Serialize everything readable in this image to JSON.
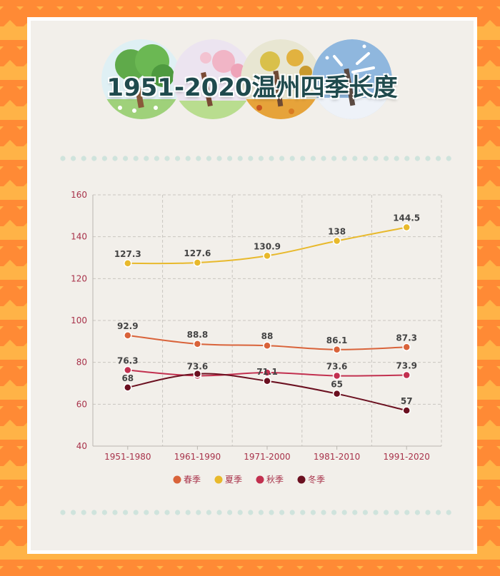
{
  "page": {
    "title": "1951-2020温州四季长度"
  },
  "colors": {
    "spring": "#d9633a",
    "summer": "#e8b92c",
    "autumn": "#c2304f",
    "winter": "#6b1020",
    "axis_text": "#a8324a",
    "grid": "#c9c6c0",
    "title": "#1f4a4d",
    "dots": "#cfe3dc"
  },
  "chart_data": {
    "type": "line",
    "categories": [
      "1951-1980",
      "1961-1990",
      "1971-2000",
      "1981-2010",
      "1991-2020"
    ],
    "title": "1951-2020温州四季长度",
    "xlabel": "",
    "ylabel": "",
    "ylim": [
      40,
      160
    ],
    "yticks": [
      40,
      60,
      80,
      100,
      120,
      140,
      160
    ],
    "grid": true,
    "legend_position": "bottom",
    "series": [
      {
        "name": "春季",
        "color": "#d9633a",
        "values": [
          92.9,
          88.8,
          88,
          86.1,
          87.3
        ],
        "labels": [
          "92.9",
          "88.8",
          "88",
          "86.1",
          "87.3"
        ]
      },
      {
        "name": "夏季",
        "color": "#e8b92c",
        "values": [
          127.3,
          127.6,
          130.9,
          138,
          144.5
        ],
        "labels": [
          "127.3",
          "127.6",
          "130.9",
          "138",
          "144.5"
        ]
      },
      {
        "name": "秋季",
        "color": "#c2304f",
        "values": [
          76.3,
          73.6,
          75.1,
          73.6,
          73.9
        ],
        "labels": [
          "76.3",
          "73.6",
          "",
          "73.6",
          "73.9"
        ]
      },
      {
        "name": "冬季",
        "color": "#6b1020",
        "values": [
          68,
          74.5,
          71.1,
          65,
          57
        ],
        "labels": [
          "68",
          "",
          "71.1",
          "65",
          "57"
        ]
      }
    ]
  }
}
